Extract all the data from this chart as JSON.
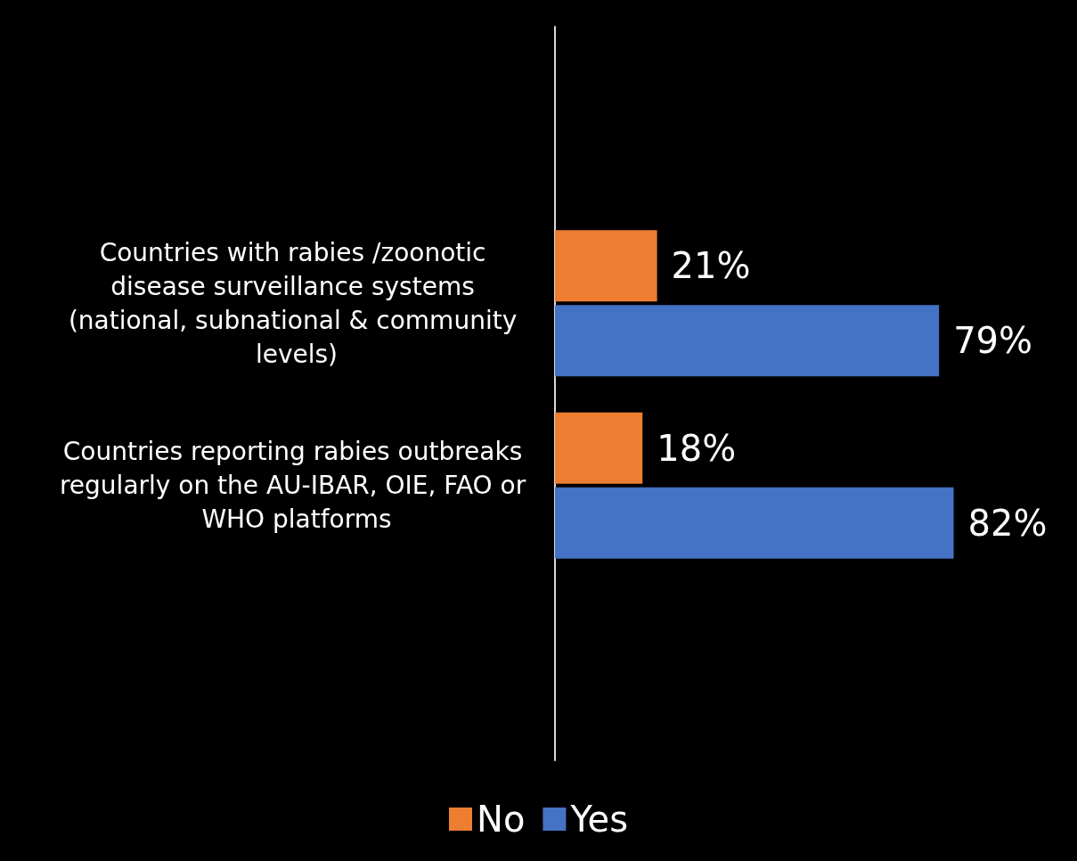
{
  "chart_data": {
    "type": "bar",
    "orientation": "horizontal",
    "categories": [
      "Countries with rabies /zoonotic disease surveillance systems (national, subnational & community levels)",
      "Countries reporting rabies outbreaks regularly on the AU-IBAR, OIE, FAO or WHO platforms"
    ],
    "series": [
      {
        "name": "No",
        "color": "#ed7d31",
        "values": [
          21,
          18
        ],
        "value_labels": [
          "21%",
          "18%"
        ]
      },
      {
        "name": "Yes",
        "color": "#4472c4",
        "values": [
          79,
          82
        ],
        "value_labels": [
          "79%",
          "82%"
        ]
      }
    ],
    "legend": "bottom"
  }
}
